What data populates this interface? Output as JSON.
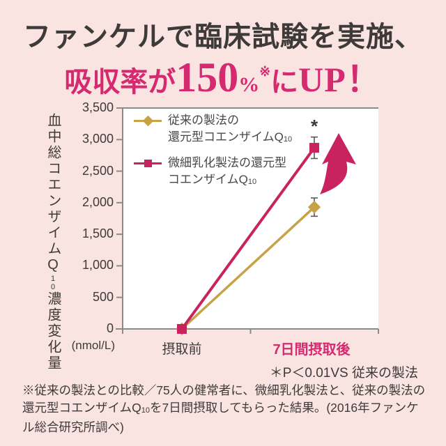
{
  "title": {
    "line1": "ファンケルで臨床試験を実施、",
    "line2_prefix": "吸収率が",
    "line2_number": "150",
    "line2_percent": "%",
    "line2_note_mark": "※",
    "line2_particle": "に",
    "line2_up": "UP！",
    "color_line1": "#3e3a39",
    "color_line2": "#d62a70"
  },
  "chart_data": {
    "type": "line",
    "categories": [
      "摂取前",
      "7日間摂取後"
    ],
    "series": [
      {
        "name_line1": "従来の製法の",
        "name_line2": "還元型コエンザイムQ",
        "name_sub": "10",
        "color": "#c7a347",
        "marker": "diamond",
        "values": [
          0,
          1930
        ],
        "errors": [
          0,
          145
        ]
      },
      {
        "name_line1": "微細乳化製法の還元型",
        "name_line2": "コエンザイムQ",
        "name_sub": "10",
        "color": "#c8235f",
        "marker": "square",
        "values": [
          0,
          2870
        ],
        "errors": [
          0,
          170
        ]
      }
    ],
    "ylabel_pre": "血中総コエンザイムQ",
    "ylabel_sub": "10",
    "ylabel_post": "濃度変化量",
    "y_unit": "(nmol/L)",
    "ylim": [
      0,
      3500
    ],
    "yticks": [
      "3,500",
      "3,000",
      "2,500",
      "2,000",
      "1,500",
      "1,000",
      "500",
      "0"
    ],
    "grid": false,
    "legend_position": "top-left",
    "significance_marker": "*",
    "highlight_category_color": "#d62a70",
    "axis_color": "#8c8989",
    "error_bar_color": "#595757"
  },
  "annotations": {
    "p_value_note": "＊P＜0.01VS 従来の製法"
  },
  "footnote": {
    "part1": "※従来の製法との比較／75人の健常者に、微細乳化製法と、従来の製法の還元型コエンザイムQ",
    "sub": "10",
    "part2": "を7日間摂取してもらった結果。(2016年ファンケル総合研究所調べ)"
  }
}
